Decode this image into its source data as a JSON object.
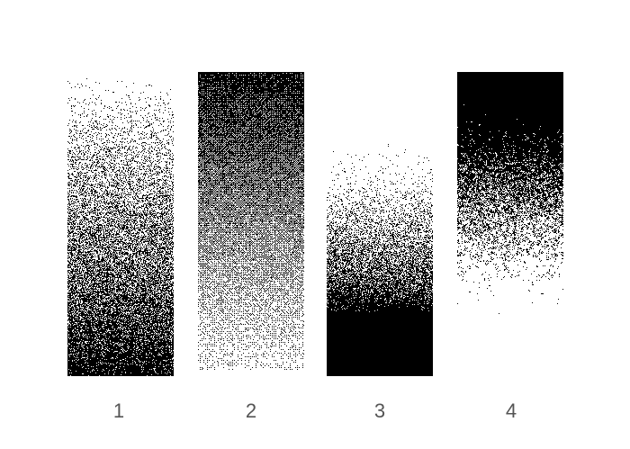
{
  "panels": [
    {
      "label": "1",
      "dither_style": "white-noise",
      "gradient": "white-to-black"
    },
    {
      "label": "2",
      "dither_style": "blue-noise-dots",
      "gradient": "black-to-white"
    },
    {
      "label": "3",
      "dither_style": "fine-noise",
      "gradient": "white-to-black"
    },
    {
      "label": "4",
      "dither_style": "clustered-noise",
      "gradient": "black-to-white"
    }
  ],
  "colors": {
    "background": "#ffffff",
    "ink": "#000000",
    "label": "#555555"
  }
}
